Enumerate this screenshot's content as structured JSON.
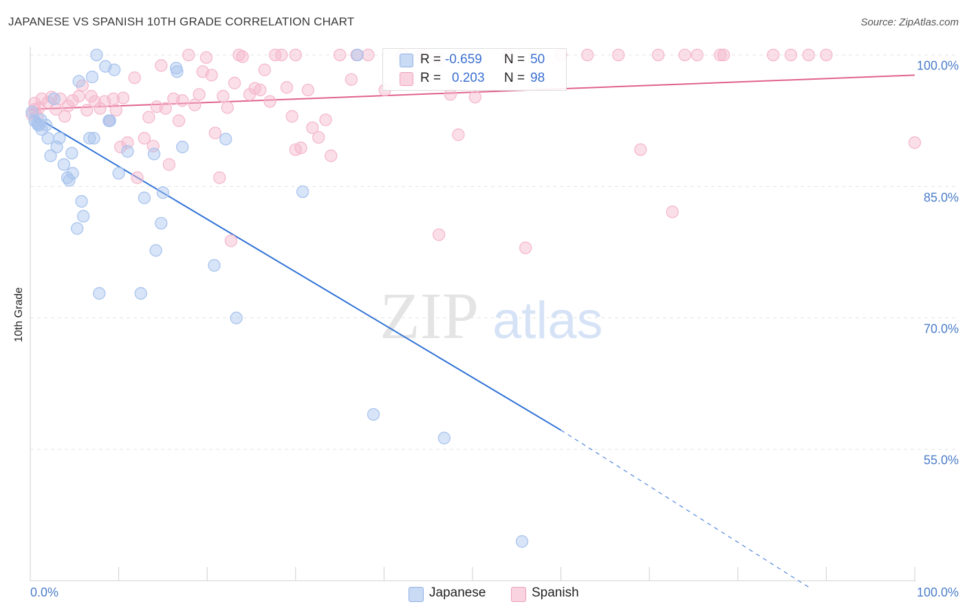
{
  "title": "JAPANESE VS SPANISH 10TH GRADE CORRELATION CHART",
  "source": "Source: ZipAtlas.com",
  "watermark": {
    "zip": "ZIP",
    "atlas": "atlas"
  },
  "legend": {
    "rows": [
      {
        "r_label": "R =",
        "r_value": "-0.659",
        "n_label": "N =",
        "n_value": "50",
        "color": "#a9c4ee"
      },
      {
        "r_label": "R =",
        "r_value": "0.203",
        "n_label": "N =",
        "n_value": "98",
        "color": "#f5b8cc"
      }
    ]
  },
  "bottom_legend": [
    {
      "label": "Japanese",
      "color": "#a9c4ee"
    },
    {
      "label": "Spanish",
      "color": "#f5b8cc"
    }
  ],
  "chart_data": {
    "type": "scatter",
    "title": "JAPANESE VS SPANISH 10TH GRADE CORRELATION CHART",
    "xlabel": "",
    "ylabel": "10th Grade",
    "xlim": [
      0,
      100
    ],
    "ylim": [
      38,
      101.5
    ],
    "x_tick_labels": [
      "0.0%",
      "100.0%"
    ],
    "y_ticks": [
      {
        "value": 100,
        "label": "100.0%"
      },
      {
        "value": 85,
        "label": "85.0%"
      },
      {
        "value": 70,
        "label": "70.0%"
      },
      {
        "value": 55,
        "label": "55.0%"
      }
    ],
    "grid": true,
    "series": [
      {
        "name": "Japanese",
        "color": "#4a86e0",
        "fill": "#a9c4ee",
        "trend": {
          "x0": 0,
          "y0": 93.3,
          "x1": 60,
          "y1": 57.2,
          "dash_to_x": 88,
          "dash_to_y": 39.3,
          "color": "#2f72d6"
        },
        "points": [
          [
            0.2,
            93.5
          ],
          [
            0.5,
            92.5
          ],
          [
            0.8,
            92.2
          ],
          [
            1.0,
            92.0
          ],
          [
            1.3,
            91.5
          ],
          [
            1.8,
            92.0
          ],
          [
            2.0,
            90.5
          ],
          [
            2.3,
            88.5
          ],
          [
            2.7,
            95.0
          ],
          [
            3.0,
            89.5
          ],
          [
            3.3,
            90.5
          ],
          [
            3.8,
            87.5
          ],
          [
            4.2,
            86.0
          ],
          [
            4.4,
            85.7
          ],
          [
            4.7,
            88.8
          ],
          [
            4.8,
            86.5
          ],
          [
            5.5,
            97.0
          ],
          [
            5.8,
            83.3
          ],
          [
            5.3,
            80.2
          ],
          [
            6.0,
            81.6
          ],
          [
            6.7,
            90.5
          ],
          [
            7.0,
            97.5
          ],
          [
            7.2,
            90.5
          ],
          [
            7.5,
            100.0
          ],
          [
            7.8,
            72.8
          ],
          [
            8.5,
            98.7
          ],
          [
            8.9,
            92.5
          ],
          [
            9.0,
            92.5
          ],
          [
            9.5,
            98.3
          ],
          [
            10.0,
            86.5
          ],
          [
            11.0,
            89.0
          ],
          [
            12.5,
            72.8
          ],
          [
            12.9,
            83.7
          ],
          [
            14.0,
            88.7
          ],
          [
            14.2,
            77.7
          ],
          [
            14.8,
            80.8
          ],
          [
            15.0,
            84.3
          ],
          [
            16.5,
            98.5
          ],
          [
            16.6,
            98.1
          ],
          [
            17.2,
            89.5
          ],
          [
            20.8,
            76.0
          ],
          [
            22.1,
            90.4
          ],
          [
            23.3,
            70.0
          ],
          [
            30.8,
            84.4
          ],
          [
            37.0,
            100.0
          ],
          [
            38.8,
            59.0
          ],
          [
            46.8,
            56.3
          ],
          [
            55.6,
            44.5
          ],
          [
            1.2,
            92.6
          ],
          [
            0.9,
            92.0
          ]
        ]
      },
      {
        "name": "Spanish",
        "color": "#e9739a",
        "fill": "#f5b8cc",
        "trend": {
          "x0": 0,
          "y0": 93.8,
          "x1": 100,
          "y1": 97.7,
          "color": "#e0608c"
        },
        "points": [
          [
            0.2,
            93.2
          ],
          [
            0.5,
            94.5
          ],
          [
            0.8,
            93.0
          ],
          [
            1.0,
            94.0
          ],
          [
            1.3,
            95.0
          ],
          [
            2.0,
            94.6
          ],
          [
            2.4,
            95.2
          ],
          [
            2.9,
            93.8
          ],
          [
            3.4,
            95.0
          ],
          [
            3.9,
            93.0
          ],
          [
            4.3,
            94.2
          ],
          [
            4.8,
            94.8
          ],
          [
            5.5,
            95.3
          ],
          [
            5.9,
            96.5
          ],
          [
            6.4,
            93.7
          ],
          [
            6.9,
            95.3
          ],
          [
            7.3,
            94.7
          ],
          [
            7.9,
            93.9
          ],
          [
            8.4,
            94.7
          ],
          [
            8.9,
            92.5
          ],
          [
            9.4,
            95.0
          ],
          [
            9.7,
            93.7
          ],
          [
            10.2,
            89.5
          ],
          [
            10.5,
            95.1
          ],
          [
            11.0,
            90.0
          ],
          [
            11.8,
            97.4
          ],
          [
            12.1,
            86.0
          ],
          [
            12.9,
            90.5
          ],
          [
            13.4,
            92.9
          ],
          [
            13.9,
            89.6
          ],
          [
            14.3,
            94.1
          ],
          [
            14.8,
            98.8
          ],
          [
            15.3,
            93.9
          ],
          [
            15.7,
            87.5
          ],
          [
            16.2,
            95.0
          ],
          [
            16.8,
            92.5
          ],
          [
            17.2,
            94.8
          ],
          [
            17.9,
            100.0
          ],
          [
            18.6,
            94.3
          ],
          [
            19.1,
            95.5
          ],
          [
            19.5,
            98.1
          ],
          [
            19.9,
            99.7
          ],
          [
            20.5,
            97.7
          ],
          [
            20.9,
            91.1
          ],
          [
            21.4,
            86.0
          ],
          [
            21.8,
            95.3
          ],
          [
            22.3,
            94.0
          ],
          [
            22.7,
            78.8
          ],
          [
            23.1,
            96.8
          ],
          [
            24.0,
            99.8
          ],
          [
            24.8,
            95.5
          ],
          [
            25.4,
            96.2
          ],
          [
            26.0,
            96.0
          ],
          [
            26.5,
            98.3
          ],
          [
            27.1,
            94.7
          ],
          [
            27.7,
            100.0
          ],
          [
            28.4,
            100.0
          ],
          [
            29.0,
            96.3
          ],
          [
            29.6,
            93.0
          ],
          [
            30.0,
            89.2
          ],
          [
            30.6,
            89.4
          ],
          [
            31.4,
            96.0
          ],
          [
            31.9,
            91.7
          ],
          [
            32.6,
            90.6
          ],
          [
            33.4,
            92.6
          ],
          [
            34.0,
            88.5
          ],
          [
            35.0,
            100.0
          ],
          [
            36.3,
            97.2
          ],
          [
            38.2,
            100.0
          ],
          [
            40.1,
            96.0
          ],
          [
            42.1,
            100.0
          ],
          [
            44.3,
            100.0
          ],
          [
            46.2,
            79.5
          ],
          [
            47.5,
            95.5
          ],
          [
            48.4,
            90.9
          ],
          [
            50.3,
            95.2
          ],
          [
            54.0,
            100.0
          ],
          [
            56.0,
            78.0
          ],
          [
            60.0,
            100.0
          ],
          [
            63.0,
            100.0
          ],
          [
            66.5,
            100.0
          ],
          [
            69.0,
            89.2
          ],
          [
            71.0,
            100.0
          ],
          [
            72.6,
            82.1
          ],
          [
            74.0,
            100.0
          ],
          [
            75.4,
            100.0
          ],
          [
            78.0,
            100.0
          ],
          [
            78.4,
            100.0
          ],
          [
            84.0,
            100.0
          ],
          [
            86.0,
            100.0
          ],
          [
            88.0,
            100.0
          ],
          [
            90.0,
            100.0
          ],
          [
            100.0,
            90.0
          ],
          [
            36.9,
            100.0
          ],
          [
            30.0,
            100.0
          ],
          [
            23.6,
            100.0
          ],
          [
            46.2,
            99.5
          ],
          [
            0.5,
            93.8
          ]
        ]
      }
    ]
  }
}
